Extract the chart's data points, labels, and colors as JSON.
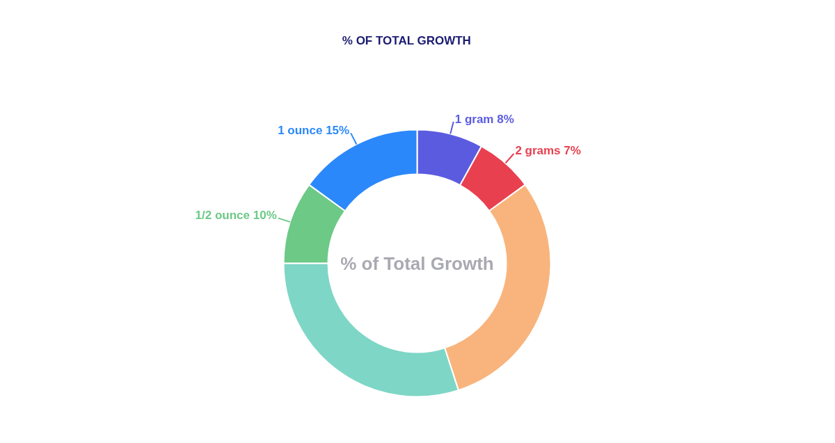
{
  "chart_data": {
    "type": "donut",
    "title": "% OF TOTAL GROWTH",
    "categories": [
      "1 gram",
      "2 grams",
      null,
      null,
      "1/2 ounce",
      "1 ounce"
    ],
    "values": [
      8,
      7,
      30,
      30,
      10,
      15
    ],
    "colors": [
      "#5b5be0",
      "#e8404f",
      "#f8b47c",
      "#7ed6c6",
      "#6cc986",
      "#2b88fa"
    ],
    "value_labels": [
      "8%",
      "7%",
      null,
      null,
      "10%",
      "15%"
    ],
    "annotations": [
      "% of Total Growth"
    ]
  }
}
